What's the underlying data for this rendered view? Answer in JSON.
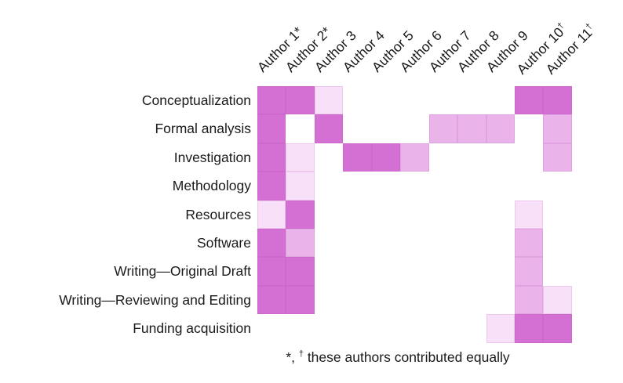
{
  "chart_data": {
    "type": "heatmap",
    "columns": [
      {
        "label": "Author 1",
        "marker": "*"
      },
      {
        "label": "Author 2",
        "marker": "*"
      },
      {
        "label": "Author 3",
        "marker": ""
      },
      {
        "label": "Author 4",
        "marker": ""
      },
      {
        "label": "Author 5",
        "marker": ""
      },
      {
        "label": "Author 6",
        "marker": ""
      },
      {
        "label": "Author 7",
        "marker": ""
      },
      {
        "label": "Author 8",
        "marker": ""
      },
      {
        "label": "Author 9",
        "marker": ""
      },
      {
        "label": "Author 10",
        "marker": "†"
      },
      {
        "label": "Author 11",
        "marker": "†"
      }
    ],
    "rows": [
      "Conceptualization",
      "Formal analysis",
      "Investigation",
      "Methodology",
      "Resources",
      "Software",
      "Writing—Original Draft",
      "Writing—Reviewing and Editing",
      "Funding acquisition"
    ],
    "values": [
      [
        3,
        3,
        1,
        0,
        0,
        0,
        0,
        0,
        0,
        3,
        3
      ],
      [
        3,
        0,
        3,
        0,
        0,
        0,
        2,
        2,
        2,
        0,
        2
      ],
      [
        3,
        1,
        0,
        3,
        3,
        2,
        0,
        0,
        0,
        0,
        2
      ],
      [
        3,
        1,
        0,
        0,
        0,
        0,
        0,
        0,
        0,
        0,
        0
      ],
      [
        1,
        3,
        0,
        0,
        0,
        0,
        0,
        0,
        0,
        1,
        0
      ],
      [
        3,
        2,
        0,
        0,
        0,
        0,
        0,
        0,
        0,
        2,
        0
      ],
      [
        3,
        3,
        0,
        0,
        0,
        0,
        0,
        0,
        0,
        2,
        0
      ],
      [
        3,
        3,
        0,
        0,
        0,
        0,
        0,
        0,
        0,
        2,
        1
      ],
      [
        0,
        0,
        0,
        0,
        0,
        0,
        0,
        0,
        1,
        3,
        3
      ]
    ],
    "value_scale_note": "0=none 1=light 2=medium 3=dark",
    "colors": {
      "level1_light": "#f8e1f8",
      "level2_medium": "#eab3ea",
      "level3_dark": "#d46fd4",
      "text": "#1a1a1a",
      "background": "#ffffff"
    },
    "footnote": {
      "star": "*, ",
      "dagger": "†",
      "text": " these authors contributed equally"
    },
    "layout": {
      "legend": "none",
      "grid": "off",
      "column_header_rotation_deg": -45
    }
  }
}
